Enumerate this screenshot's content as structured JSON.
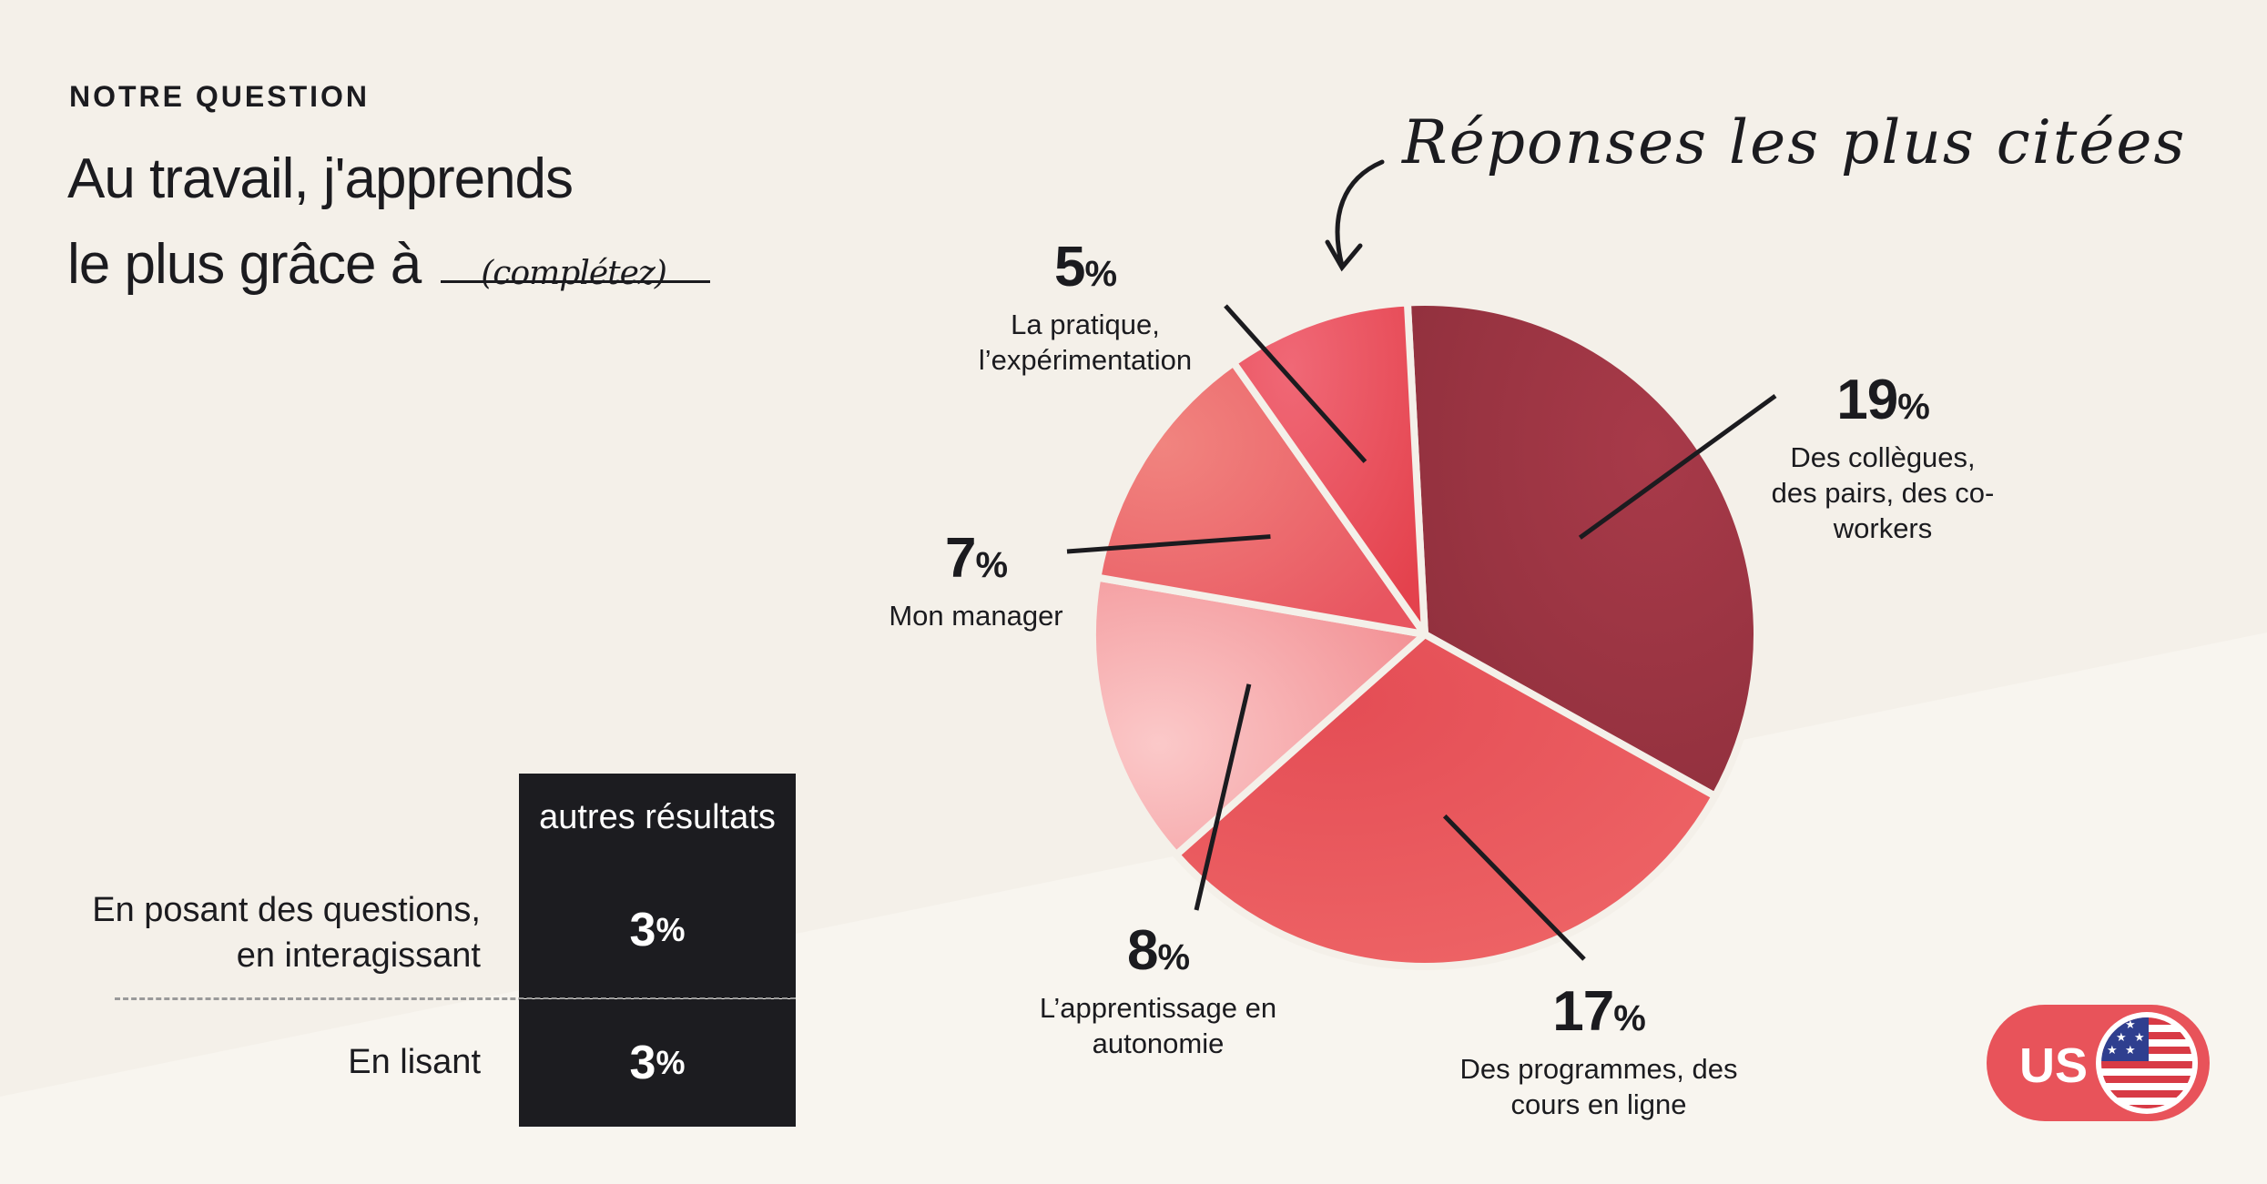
{
  "header": {
    "eyebrow": "NOTRE QUESTION",
    "title_line1": "Au travail, j'apprends",
    "title_line2": "le plus grâce à",
    "blank_hint": "(complétez)"
  },
  "annotation": "Réponses les plus citées",
  "chart_data": {
    "type": "pie",
    "title": "Réponses les plus citées",
    "slices": [
      {
        "label": "Des collègues, des pairs, des co-workers",
        "value": 19,
        "color": "#9e3644"
      },
      {
        "label": "Des programmes, des cours en ligne",
        "value": 17,
        "color": "#e9545a"
      },
      {
        "label": "L’apprentissage en autonomie",
        "value": 8,
        "color": "#f7a9ab"
      },
      {
        "label": "Mon manager",
        "value": 7,
        "color": "#ee7272"
      },
      {
        "label": "La pratique, l’expérimentation",
        "value": 5,
        "color": "#ef5a68"
      }
    ]
  },
  "labels": [
    {
      "pct": "19",
      "sign": "%",
      "desc": [
        "Des collègues,",
        "des pairs, des co-",
        "workers"
      ]
    },
    {
      "pct": "17",
      "sign": "%",
      "desc": [
        "Des programmes, des",
        "cours en ligne"
      ]
    },
    {
      "pct": "8",
      "sign": "%",
      "desc": [
        "L’apprentissage en",
        "autonomie"
      ]
    },
    {
      "pct": "7",
      "sign": "%",
      "desc": [
        "Mon manager"
      ]
    },
    {
      "pct": "5",
      "sign": "%",
      "desc": [
        "La pratique,",
        "l’expérimentation"
      ]
    }
  ],
  "others": {
    "header": "autres résultats",
    "rows": [
      {
        "label_lines": [
          "En  posant des questions,",
          "en interagissant"
        ],
        "value": "3",
        "sign": "%"
      },
      {
        "label_lines": [
          "En lisant"
        ],
        "value": "3",
        "sign": "%"
      }
    ]
  },
  "badge": {
    "country": "US",
    "icon": "us-flag-icon"
  },
  "colors": {
    "background": "#f4f0e9",
    "lower_band": "#f8f5ef",
    "dark_cell": "#1c1c20",
    "badge": "#e8535a"
  }
}
